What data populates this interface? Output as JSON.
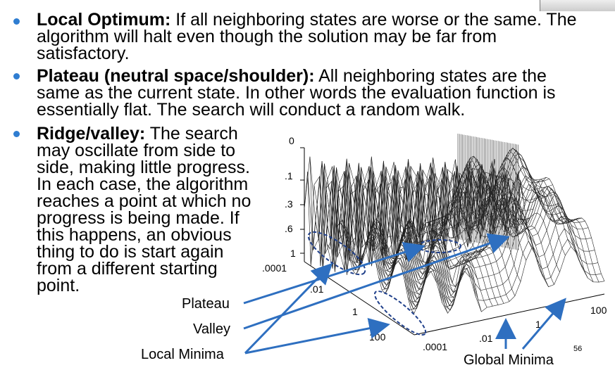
{
  "bullets": [
    {
      "term": "Local Optimum:",
      "lines": [
        " If all neighboring states are worse or the same. The",
        "algorithm will halt even though the solution may be far from",
        "satisfactory."
      ]
    },
    {
      "term": "Plateau (neutral space/shoulder):",
      "lines": [
        " All neighboring states are the",
        "same as the current state. In other words the evaluation function is",
        "essentially flat. The search will conduct a random walk."
      ]
    },
    {
      "term": "Ridge/valley:",
      "lines": [
        " The search",
        "may oscillate from side to",
        "side, making little progress.",
        "In each case, the algorithm",
        "reaches a point at which no",
        "progress is being made. If",
        "this happens, an obvious",
        "thing to do is start again",
        "from a different starting",
        "point."
      ]
    }
  ],
  "figure": {
    "labels": {
      "plateau": "Plateau",
      "valley": "Valley",
      "local_minima": "Local Minima",
      "global_minima": "Global Minima"
    },
    "z_ticks": [
      "0",
      ".1",
      ".3",
      ".6",
      "1"
    ],
    "left_axis_ticks": [
      ".0001",
      ".01",
      "1",
      "100"
    ],
    "right_axis_ticks": [
      ".0001",
      ".01",
      "1",
      "100"
    ]
  },
  "slide_number": "56",
  "colors": {
    "bullet": "#2f7dd1",
    "arrow": "#2e6fc0",
    "ellipse": "#1f3f8a"
  }
}
